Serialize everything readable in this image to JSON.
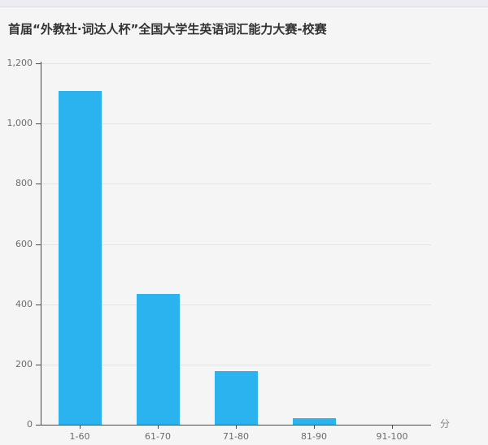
{
  "page": {
    "background": "#f5f5f6",
    "topstrip_color": "#edecf2"
  },
  "title": "首届“外教社·词达人杯”全国大学生英语词汇能力大赛-校赛",
  "chart_data": {
    "type": "bar",
    "categories": [
      "1-60",
      "61-70",
      "71-80",
      "81-90",
      "91-100"
    ],
    "values": [
      1108,
      435,
      177,
      21,
      0
    ],
    "title": "首届“外教社·词达人杯”全国大学生英语词汇能力大赛-校赛",
    "xlabel": "分",
    "ylabel": "",
    "ylim": [
      0,
      1200
    ],
    "ytick_interval": 200,
    "ytick_labels": [
      "0",
      "200",
      "400",
      "600",
      "800",
      "1,000",
      "1,200"
    ],
    "grid": true,
    "legend": "none",
    "bar_color": "#2bb3ef",
    "axis_color": "#4a4a4a",
    "grid_color": "#e2e2e4",
    "label_color": "#6b6b6b"
  }
}
